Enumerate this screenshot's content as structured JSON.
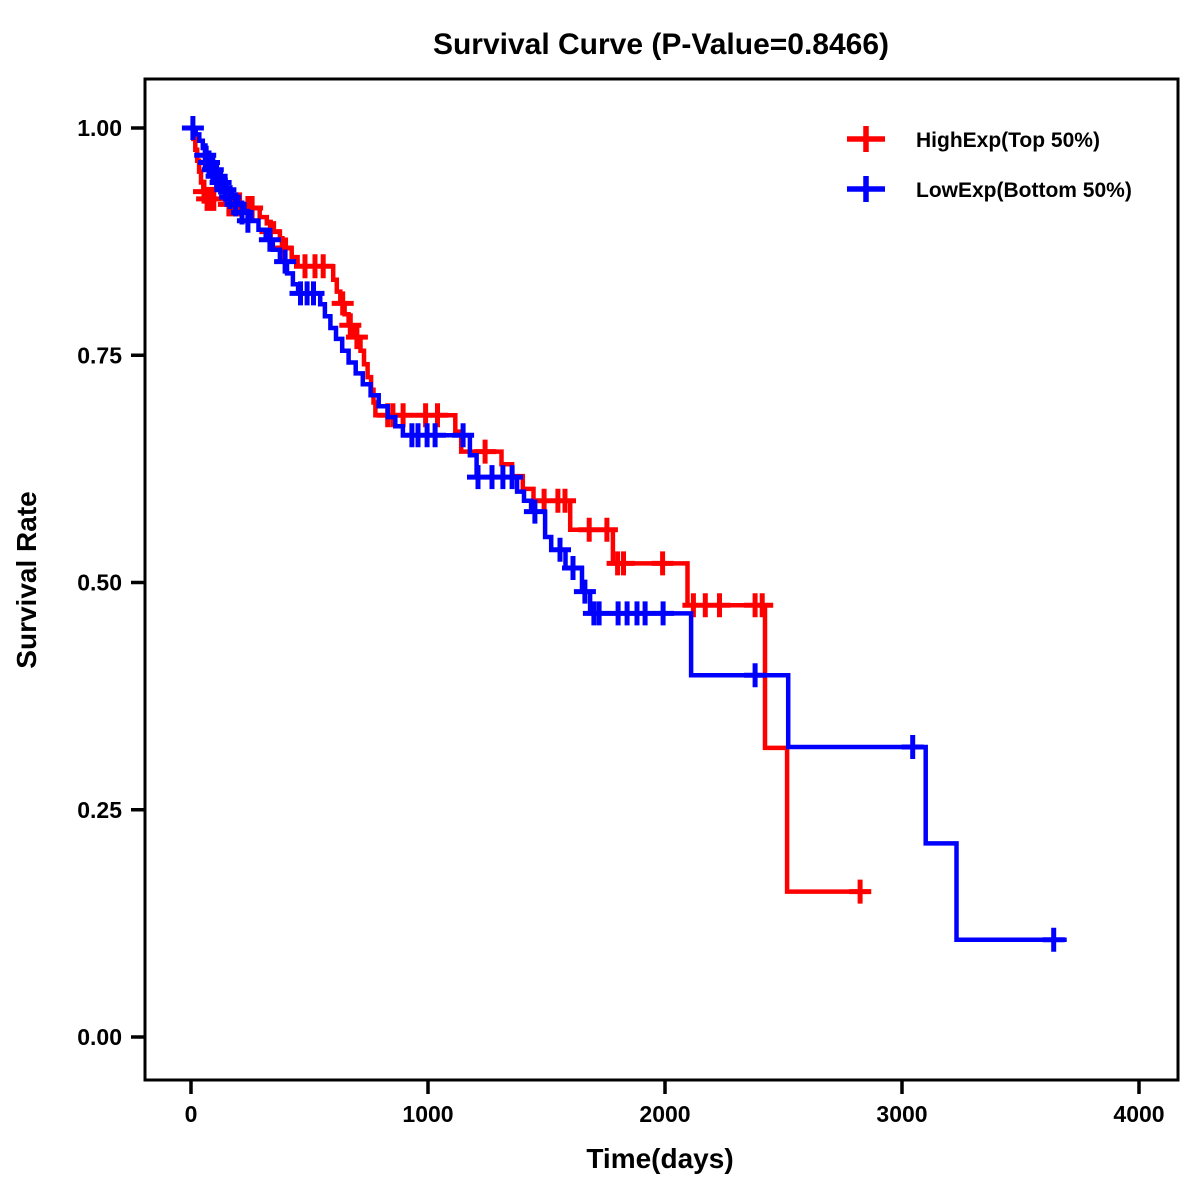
{
  "chart_data": {
    "type": "line",
    "subtype": "kaplan-meier-step-curve",
    "title": "Survival Curve (P-Value=0.8466)",
    "p_value_shown": "0.8466",
    "xlabel": "Time(days)",
    "ylabel": "Survival Rate",
    "xlim": [
      0,
      4000
    ],
    "ylim": [
      0,
      1
    ],
    "grid": false,
    "legend_position": "top-right",
    "x_ticks": [
      {
        "v": 0,
        "label": "0"
      },
      {
        "v": 1000,
        "label": "1000"
      },
      {
        "v": 2000,
        "label": "2000"
      },
      {
        "v": 3000,
        "label": "3000"
      },
      {
        "v": 4000,
        "label": "4000"
      }
    ],
    "y_ticks": [
      {
        "v": 1.0,
        "label": "1.00"
      },
      {
        "v": 0.75,
        "label": "0.75"
      },
      {
        "v": 0.5,
        "label": "0.50"
      },
      {
        "v": 0.25,
        "label": "0.25"
      },
      {
        "v": 0.0,
        "label": "0.00"
      }
    ],
    "series": [
      {
        "name": "HighExp(Top 50%)",
        "color": "#FF0000",
        "end_time": 2870,
        "steps": [
          [
            0,
            1.0
          ],
          [
            10,
            0.988
          ],
          [
            18,
            0.976
          ],
          [
            26,
            0.964
          ],
          [
            34,
            0.952
          ],
          [
            42,
            0.94
          ],
          [
            52,
            0.93
          ],
          [
            60,
            0.922
          ],
          [
            150,
            0.916
          ],
          [
            230,
            0.912
          ],
          [
            290,
            0.902
          ],
          [
            320,
            0.895
          ],
          [
            350,
            0.886
          ],
          [
            375,
            0.877
          ],
          [
            400,
            0.868
          ],
          [
            425,
            0.858
          ],
          [
            450,
            0.848
          ],
          [
            600,
            0.833
          ],
          [
            615,
            0.82
          ],
          [
            630,
            0.807
          ],
          [
            648,
            0.795
          ],
          [
            665,
            0.783
          ],
          [
            690,
            0.77
          ],
          [
            715,
            0.755
          ],
          [
            730,
            0.74
          ],
          [
            745,
            0.726
          ],
          [
            760,
            0.712
          ],
          [
            770,
            0.698
          ],
          [
            778,
            0.684
          ],
          [
            1115,
            0.666
          ],
          [
            1140,
            0.644
          ],
          [
            1310,
            0.63
          ],
          [
            1355,
            0.617
          ],
          [
            1400,
            0.603
          ],
          [
            1445,
            0.59
          ],
          [
            1600,
            0.558
          ],
          [
            1780,
            0.521
          ],
          [
            2095,
            0.475
          ],
          [
            2422,
            0.318
          ],
          [
            2515,
            0.16
          ]
        ],
        "censors": [
          [
            55,
            0.93
          ],
          [
            68,
            0.922
          ],
          [
            82,
            0.922
          ],
          [
            96,
            0.922
          ],
          [
            160,
            0.916
          ],
          [
            175,
            0.916
          ],
          [
            190,
            0.916
          ],
          [
            205,
            0.916
          ],
          [
            240,
            0.912
          ],
          [
            258,
            0.912
          ],
          [
            335,
            0.886
          ],
          [
            385,
            0.868
          ],
          [
            481,
            0.848
          ],
          [
            523,
            0.848
          ],
          [
            558,
            0.848
          ],
          [
            640,
            0.807
          ],
          [
            672,
            0.783
          ],
          [
            700,
            0.77
          ],
          [
            830,
            0.684
          ],
          [
            852,
            0.684
          ],
          [
            895,
            0.684
          ],
          [
            990,
            0.684
          ],
          [
            1040,
            0.684
          ],
          [
            1241,
            0.644
          ],
          [
            1490,
            0.59
          ],
          [
            1548,
            0.59
          ],
          [
            1578,
            0.59
          ],
          [
            1680,
            0.558
          ],
          [
            1755,
            0.558
          ],
          [
            1800,
            0.521
          ],
          [
            1825,
            0.521
          ],
          [
            1990,
            0.521
          ],
          [
            2120,
            0.475
          ],
          [
            2170,
            0.475
          ],
          [
            2230,
            0.475
          ],
          [
            2380,
            0.475
          ],
          [
            2410,
            0.475
          ],
          [
            2823,
            0.16
          ]
        ]
      },
      {
        "name": "LowExp(Bottom 50%)",
        "color": "#0000FF",
        "end_time": 3695,
        "steps": [
          [
            0,
            1.0
          ],
          [
            20,
            0.993
          ],
          [
            35,
            0.986
          ],
          [
            50,
            0.978
          ],
          [
            65,
            0.97
          ],
          [
            80,
            0.962
          ],
          [
            95,
            0.954
          ],
          [
            112,
            0.947
          ],
          [
            130,
            0.94
          ],
          [
            150,
            0.932
          ],
          [
            172,
            0.924
          ],
          [
            196,
            0.916
          ],
          [
            225,
            0.907
          ],
          [
            255,
            0.898
          ],
          [
            285,
            0.888
          ],
          [
            315,
            0.877
          ],
          [
            345,
            0.866
          ],
          [
            375,
            0.853
          ],
          [
            405,
            0.84
          ],
          [
            430,
            0.828
          ],
          [
            452,
            0.818
          ],
          [
            545,
            0.806
          ],
          [
            565,
            0.793
          ],
          [
            588,
            0.78
          ],
          [
            612,
            0.768
          ],
          [
            638,
            0.755
          ],
          [
            665,
            0.742
          ],
          [
            695,
            0.73
          ],
          [
            725,
            0.718
          ],
          [
            758,
            0.706
          ],
          [
            792,
            0.694
          ],
          [
            830,
            0.682
          ],
          [
            862,
            0.672
          ],
          [
            894,
            0.662
          ],
          [
            1177,
            0.64
          ],
          [
            1205,
            0.616
          ],
          [
            1376,
            0.6
          ],
          [
            1405,
            0.59
          ],
          [
            1435,
            0.578
          ],
          [
            1494,
            0.55
          ],
          [
            1520,
            0.536
          ],
          [
            1580,
            0.516
          ],
          [
            1650,
            0.49
          ],
          [
            1684,
            0.466
          ],
          [
            2110,
            0.398
          ],
          [
            2520,
            0.319
          ],
          [
            3100,
            0.213
          ],
          [
            3230,
            0.107
          ]
        ],
        "censors": [
          [
            8,
            1.0
          ],
          [
            60,
            0.97
          ],
          [
            76,
            0.962
          ],
          [
            92,
            0.954
          ],
          [
            108,
            0.947
          ],
          [
            125,
            0.94
          ],
          [
            145,
            0.932
          ],
          [
            165,
            0.924
          ],
          [
            188,
            0.916
          ],
          [
            215,
            0.907
          ],
          [
            240,
            0.898
          ],
          [
            333,
            0.877
          ],
          [
            397,
            0.853
          ],
          [
            462,
            0.818
          ],
          [
            490,
            0.818
          ],
          [
            517,
            0.818
          ],
          [
            932,
            0.662
          ],
          [
            958,
            0.662
          ],
          [
            996,
            0.662
          ],
          [
            1030,
            0.662
          ],
          [
            1148,
            0.662
          ],
          [
            1211,
            0.616
          ],
          [
            1270,
            0.616
          ],
          [
            1316,
            0.616
          ],
          [
            1355,
            0.616
          ],
          [
            1451,
            0.578
          ],
          [
            1557,
            0.536
          ],
          [
            1612,
            0.516
          ],
          [
            1662,
            0.49
          ],
          [
            1700,
            0.466
          ],
          [
            1722,
            0.466
          ],
          [
            1802,
            0.466
          ],
          [
            1840,
            0.466
          ],
          [
            1882,
            0.466
          ],
          [
            1916,
            0.466
          ],
          [
            1992,
            0.466
          ],
          [
            2380,
            0.398
          ],
          [
            3045,
            0.319
          ],
          [
            3640,
            0.107
          ]
        ]
      }
    ],
    "colors": {
      "highexp": "#FF0000",
      "lowexp": "#0000FF",
      "axis": "#000000",
      "background": "#FFFFFF"
    }
  }
}
